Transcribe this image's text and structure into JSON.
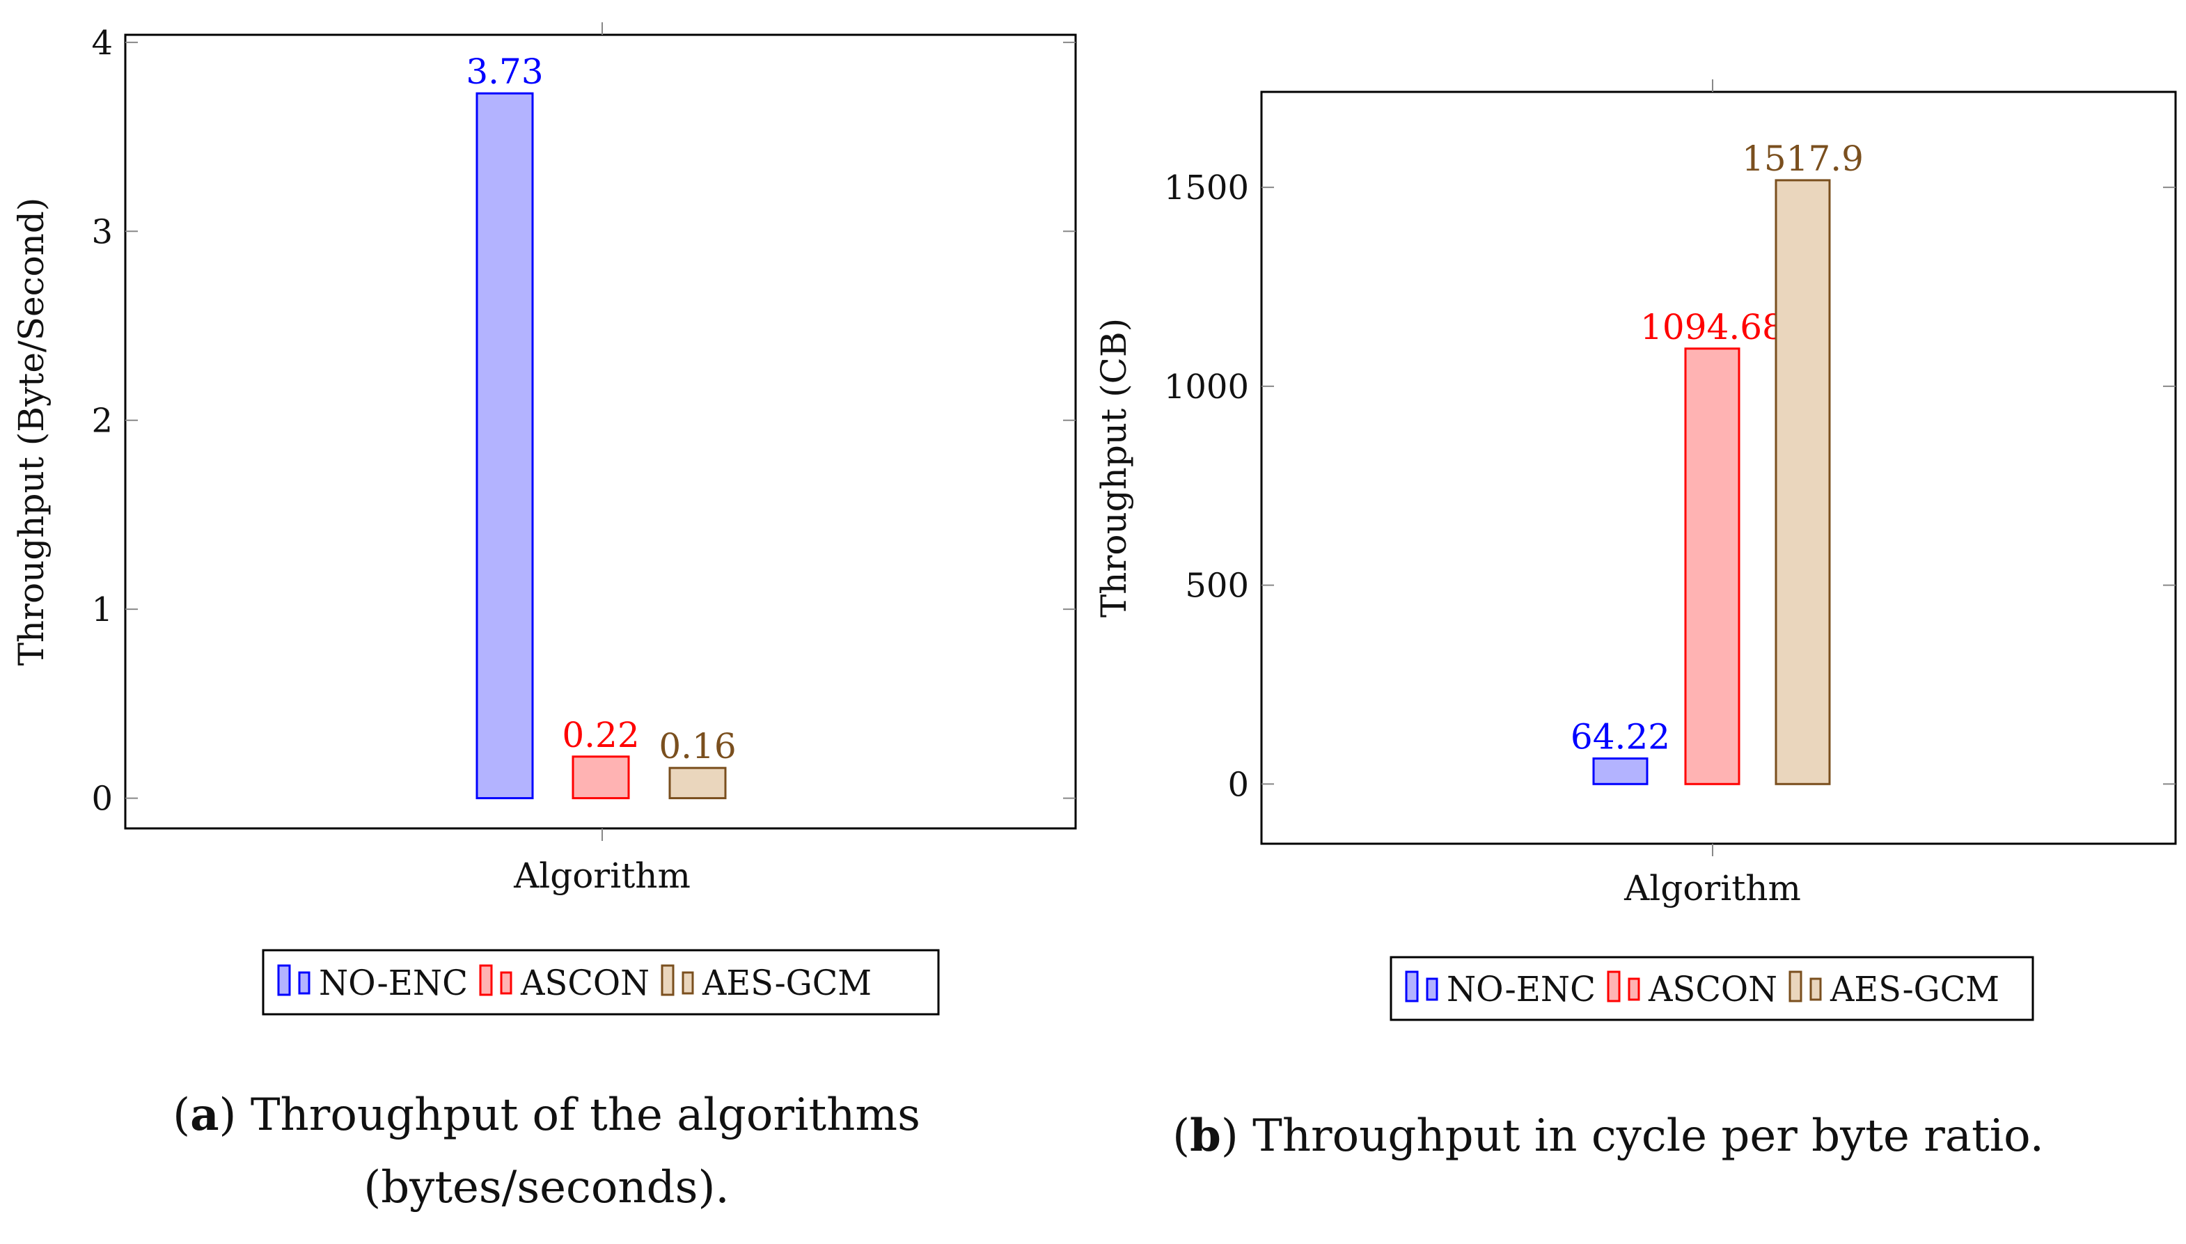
{
  "chart_data": [
    {
      "type": "bar",
      "panel": "a",
      "categories": [
        "Algorithm"
      ],
      "series": [
        {
          "name": "NO-ENC",
          "values": [
            3.73
          ],
          "label": "3.73",
          "color": "#0000ff",
          "fill": "#b3b3ff"
        },
        {
          "name": "ASCON",
          "values": [
            0.22
          ],
          "label": "0.22",
          "color": "#ff0000",
          "fill": "#ffb3b3"
        },
        {
          "name": "AES-GCM",
          "values": [
            0.16
          ],
          "label": "0.16",
          "color": "#7a4f1e",
          "fill": "#ead6bd"
        }
      ],
      "xlabel": "Algorithm",
      "ylabel": "Throughput (Byte/Second)",
      "ylim": [
        -0.16,
        4.04
      ],
      "yticks": [
        0,
        1,
        2,
        3,
        4
      ],
      "ytick_labels": [
        "0",
        "1",
        "2",
        "3",
        "4"
      ],
      "legend": [
        "NO-ENC",
        "ASCON",
        "AES-GCM"
      ],
      "legend_position": "below"
    },
    {
      "type": "bar",
      "panel": "b",
      "categories": [
        "Algorithm"
      ],
      "series": [
        {
          "name": "NO-ENC",
          "values": [
            64.22
          ],
          "label": "64.22",
          "color": "#0000ff",
          "fill": "#b3b3ff"
        },
        {
          "name": "ASCON",
          "values": [
            1094.68
          ],
          "label": "1094.68",
          "color": "#ff0000",
          "fill": "#ffb3b3"
        },
        {
          "name": "AES-GCM",
          "values": [
            1517.9
          ],
          "label": "1517.9",
          "color": "#7a4f1e",
          "fill": "#ead6bd"
        }
      ],
      "xlabel": "Algorithm",
      "ylabel": "Throughput (CB)",
      "ylim": [
        -150,
        1740
      ],
      "yticks": [
        0,
        500,
        1000,
        1500
      ],
      "ytick_labels": [
        "0",
        "500",
        "1000",
        "1500"
      ],
      "legend": [
        "NO-ENC",
        "ASCON",
        "AES-GCM"
      ],
      "legend_position": "below"
    }
  ],
  "captions": {
    "a": {
      "letter": "a",
      "line1": ") Throughput of the algorithms",
      "line2": "(bytes/seconds)."
    },
    "b": {
      "letter": "b",
      "text": ") Throughput in cycle per byte ratio."
    }
  }
}
